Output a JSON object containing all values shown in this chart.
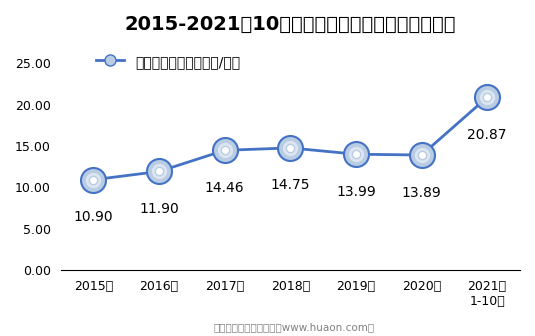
{
  "title": "2015-2021年10月上海期货交易所锡期货成交均价",
  "legend_label": "锡期货成交均价（万元/手）",
  "x_labels": [
    "2015年",
    "2016年",
    "2017年",
    "2018年",
    "2019年",
    "2020年",
    "2021年\n1-10月"
  ],
  "values": [
    10.9,
    11.9,
    14.46,
    14.75,
    13.99,
    13.89,
    20.87
  ],
  "ylim": [
    0,
    27
  ],
  "yticks": [
    0.0,
    5.0,
    10.0,
    15.0,
    20.0,
    25.0
  ],
  "line_color": "#4472C4",
  "marker_color": "#4472C4",
  "footer": "制图：华经产业研究院（www.huaon.com）",
  "title_fontsize": 14,
  "label_fontsize": 10,
  "annotation_fontsize": 10,
  "bg_color": "#ffffff"
}
